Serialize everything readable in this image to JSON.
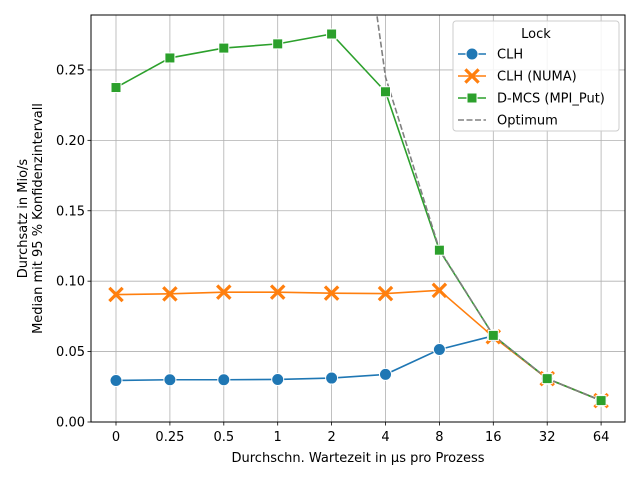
{
  "chart_data": {
    "type": "line",
    "categories": [
      "0",
      "0.25",
      "0.5",
      "1",
      "2",
      "4",
      "8",
      "16",
      "32",
      "64"
    ],
    "xlabel": "Durchschn. Wartezeit in µs pro Prozess",
    "ylabel_line1": "Durchsatz in Mio/s",
    "ylabel_line2": "Median mit 95 % Konfidenzintervall",
    "ylim": [
      0.0,
      0.289
    ],
    "yticks": [
      0.0,
      0.05,
      0.1,
      0.15,
      0.2,
      0.25
    ],
    "ytick_labels": [
      "0.00",
      "0.05",
      "0.10",
      "0.15",
      "0.20",
      "0.25"
    ],
    "grid": true,
    "legend": {
      "title": "Lock",
      "placement": "top-right",
      "entries": [
        "CLH",
        "CLH (NUMA)",
        "D-MCS (MPI_Put)",
        "Optimum"
      ]
    },
    "series": [
      {
        "name": "CLH",
        "color": "#1f77b4",
        "marker": "circle",
        "values": [
          0.0295,
          0.03,
          0.03,
          0.0302,
          0.0312,
          0.0338,
          0.0515,
          0.0612,
          0.0308,
          0.0152
        ]
      },
      {
        "name": "CLH (NUMA)",
        "color": "#ff7f0e",
        "marker": "x",
        "values": [
          0.0905,
          0.091,
          0.0922,
          0.0922,
          0.0915,
          0.0912,
          0.0935,
          0.0605,
          0.0308,
          0.0152
        ]
      },
      {
        "name": "D-MCS (MPI_Put)",
        "color": "#2ca02c",
        "marker": "square",
        "values": [
          0.2375,
          0.2585,
          0.2655,
          0.2685,
          0.2755,
          0.2345,
          0.122,
          0.0615,
          0.0308,
          0.0152
        ]
      },
      {
        "name": "Optimum",
        "color": "#808080",
        "marker": "none",
        "dashed": true,
        "points": [
          [
            4.8,
            0.3
          ],
          [
            5.0,
            0.245
          ],
          [
            6.0,
            0.1225
          ],
          [
            7.0,
            0.0615
          ],
          [
            8.0,
            0.0308
          ],
          [
            9.0,
            0.0153
          ]
        ]
      }
    ]
  }
}
